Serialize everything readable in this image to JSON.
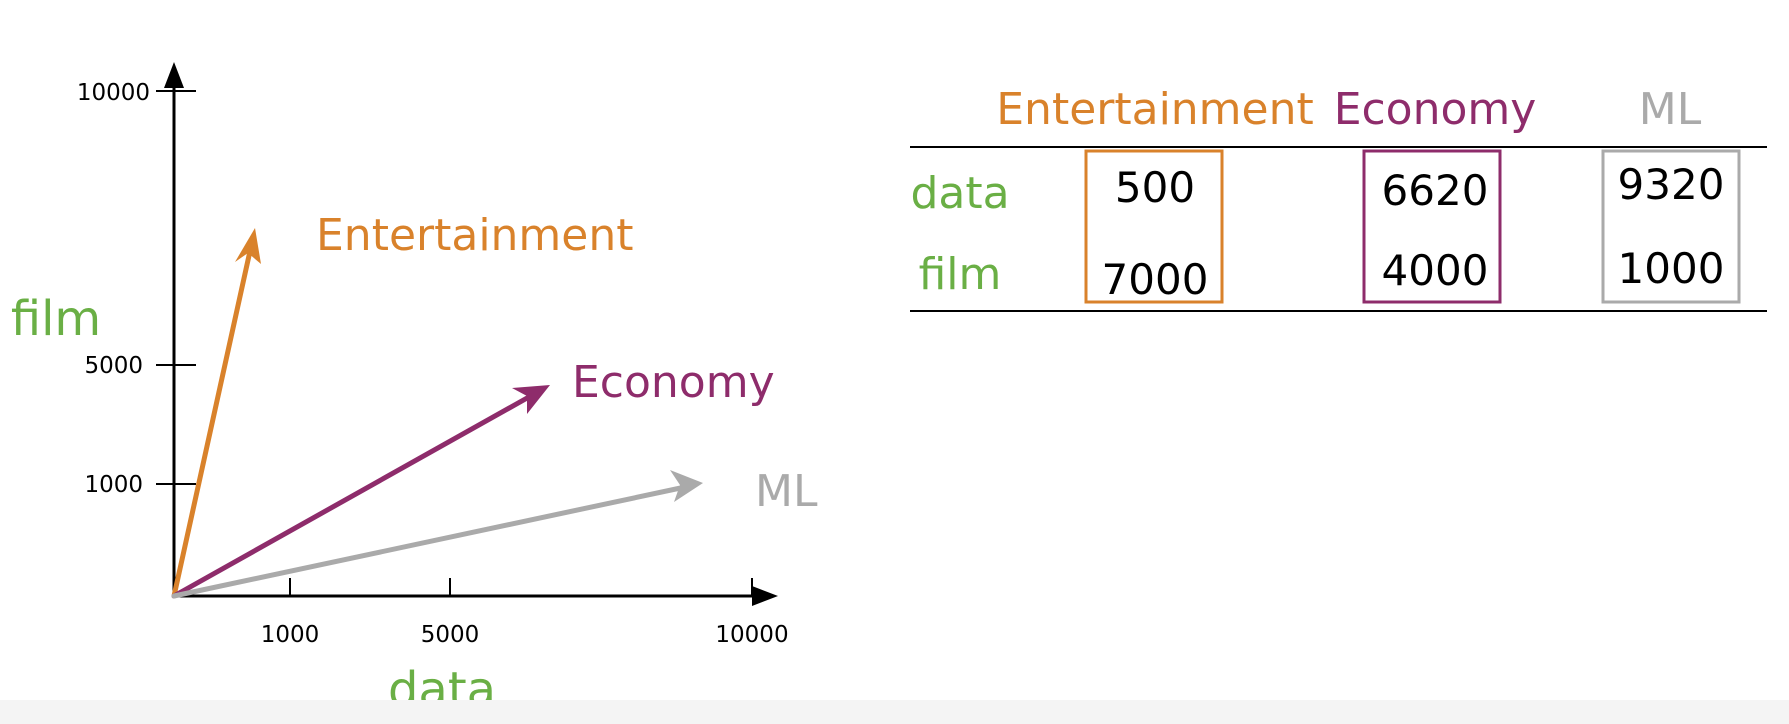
{
  "colors": {
    "entertainment": "#D9822B",
    "economy": "#8E2C6B",
    "ml": "#AAAAAA",
    "axis_word": "#6AAF45",
    "axis": "#000000"
  },
  "plot": {
    "x_label": "data",
    "y_label": "film",
    "x_ticks": [
      {
        "value": 1000,
        "label": "1000"
      },
      {
        "value": 5000,
        "label": "5000"
      },
      {
        "value": 10000,
        "label": "10000"
      }
    ],
    "y_ticks": [
      {
        "value": 1000,
        "label": "1000"
      },
      {
        "value": 5000,
        "label": "5000"
      },
      {
        "value": 10000,
        "label": "10000"
      }
    ],
    "vectors": [
      {
        "name": "Entertainment",
        "color_key": "entertainment"
      },
      {
        "name": "Economy",
        "color_key": "economy"
      },
      {
        "name": "ML",
        "color_key": "ml"
      }
    ]
  },
  "table": {
    "columns": [
      {
        "label": "Entertainment",
        "color_key": "entertainment"
      },
      {
        "label": "Economy",
        "color_key": "economy"
      },
      {
        "label": "ML",
        "color_key": "ml"
      }
    ],
    "rows": [
      {
        "label": "data",
        "values": [
          "500",
          "6620",
          "9320"
        ]
      },
      {
        "label": "film",
        "values": [
          "7000",
          "4000",
          "1000"
        ]
      }
    ]
  }
}
